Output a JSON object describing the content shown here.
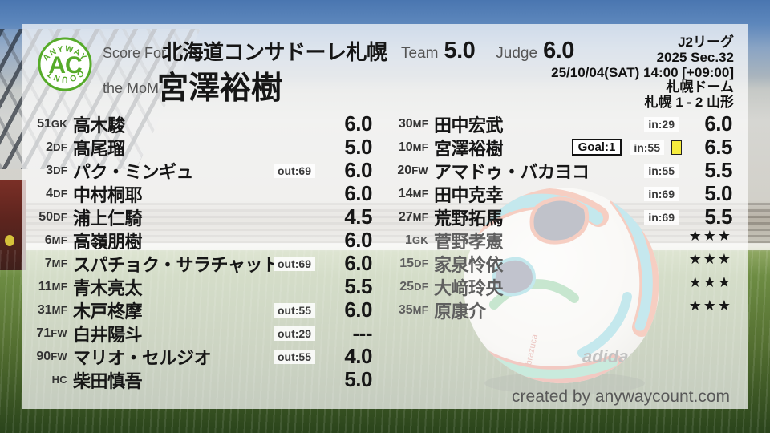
{
  "logo": {
    "monogram": "AC",
    "arc_top": "ANYWAY",
    "arc_bottom": "COUNT"
  },
  "header": {
    "score_for_label": "Score For",
    "team_name": "北海道コンサドーレ札幌",
    "mom_label": "the MoM",
    "mom_name": "宮澤裕樹",
    "team_label": "Team",
    "team_score": "5.0",
    "judge_label": "Judge",
    "judge_score": "6.0"
  },
  "match_info": {
    "league": "J2リーグ",
    "season_section": "2025 Sec.32",
    "kickoff": "25/10/04(SAT) 14:00 [+09:00]",
    "venue": "札幌ドーム",
    "result": "札幌 1 - 2 山形"
  },
  "colors": {
    "accent_green": "#56ab2a",
    "yellow_card": "#f6ec3e"
  },
  "left_column": {
    "rows": [
      {
        "num": "51",
        "pos": "GK",
        "name": "高木駿",
        "badge": "",
        "rating": "6.0"
      },
      {
        "num": "2",
        "pos": "DF",
        "name": "髙尾瑠",
        "badge": "",
        "rating": "5.0"
      },
      {
        "num": "3",
        "pos": "DF",
        "name": "パク・ミンギュ",
        "badge": "out:69",
        "rating": "6.0"
      },
      {
        "num": "4",
        "pos": "DF",
        "name": "中村桐耶",
        "badge": "",
        "rating": "6.0"
      },
      {
        "num": "50",
        "pos": "DF",
        "name": "浦上仁騎",
        "badge": "",
        "rating": "4.5"
      },
      {
        "num": "6",
        "pos": "MF",
        "name": "高嶺朋樹",
        "badge": "",
        "rating": "6.0"
      },
      {
        "num": "7",
        "pos": "MF",
        "name": "スパチョク・サラチャット",
        "badge": "out:69",
        "rating": "6.0"
      },
      {
        "num": "11",
        "pos": "MF",
        "name": "青木亮太",
        "badge": "",
        "rating": "5.5"
      },
      {
        "num": "31",
        "pos": "MF",
        "name": "木戸柊摩",
        "badge": "out:55",
        "rating": "6.0"
      },
      {
        "num": "71",
        "pos": "FW",
        "name": "白井陽斗",
        "badge": "out:29",
        "rating": "---"
      },
      {
        "num": "90",
        "pos": "FW",
        "name": "マリオ・セルジオ",
        "badge": "out:55",
        "rating": "4.0"
      },
      {
        "num": "",
        "pos": "HC",
        "name": "柴田慎吾",
        "badge": "",
        "rating": "5.0"
      }
    ]
  },
  "right_column": {
    "rows": [
      {
        "num": "30",
        "pos": "MF",
        "name": "田中宏武",
        "goal": "",
        "badge": "in:29",
        "yellow_card": false,
        "rating": "6.0",
        "unused": false
      },
      {
        "num": "10",
        "pos": "MF",
        "name": "宮澤裕樹",
        "goal": "Goal:1",
        "badge": "in:55",
        "yellow_card": true,
        "rating": "6.5",
        "unused": false
      },
      {
        "num": "20",
        "pos": "FW",
        "name": "アマドゥ・バカヨコ",
        "goal": "",
        "badge": "in:55",
        "yellow_card": false,
        "rating": "5.5",
        "unused": false
      },
      {
        "num": "14",
        "pos": "MF",
        "name": "田中克幸",
        "goal": "",
        "badge": "in:69",
        "yellow_card": false,
        "rating": "5.0",
        "unused": false
      },
      {
        "num": "27",
        "pos": "MF",
        "name": "荒野拓馬",
        "goal": "",
        "badge": "in:69",
        "yellow_card": false,
        "rating": "5.5",
        "unused": false
      },
      {
        "num": "1",
        "pos": "GK",
        "name": "菅野孝憲",
        "goal": "",
        "badge": "",
        "yellow_card": false,
        "rating": "★★★",
        "unused": true
      },
      {
        "num": "15",
        "pos": "DF",
        "name": "家泉怜依",
        "goal": "",
        "badge": "",
        "yellow_card": false,
        "rating": "★★★",
        "unused": true
      },
      {
        "num": "25",
        "pos": "DF",
        "name": "大﨑玲央",
        "goal": "",
        "badge": "",
        "yellow_card": false,
        "rating": "★★★",
        "unused": true
      },
      {
        "num": "35",
        "pos": "MF",
        "name": "原康介",
        "goal": "",
        "badge": "",
        "yellow_card": false,
        "rating": "★★★",
        "unused": true
      }
    ]
  },
  "footer": {
    "credit": "created by anywaycount.com"
  }
}
